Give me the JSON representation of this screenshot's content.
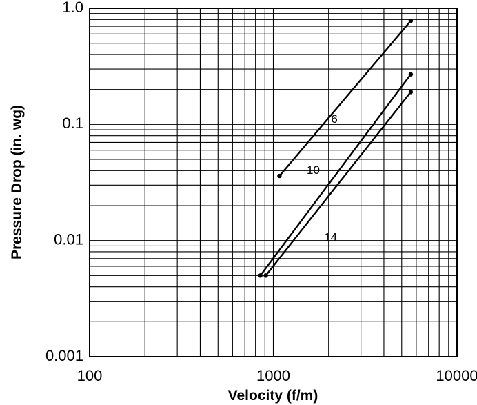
{
  "chart_data": {
    "type": "line",
    "x_scale": "log",
    "y_scale": "log",
    "xlim": [
      100,
      10000
    ],
    "ylim": [
      0.001,
      1.0
    ],
    "grid": true,
    "xlabel": "Velocity (f/m)",
    "ylabel": "Pressure Drop (in. wg)",
    "x_ticks": [
      {
        "value": 100,
        "label": "100"
      },
      {
        "value": 1000,
        "label": "1000"
      },
      {
        "value": 10000,
        "label": "10000"
      }
    ],
    "y_ticks": [
      {
        "value": 0.001,
        "label": "0.001"
      },
      {
        "value": 0.01,
        "label": "0.01"
      },
      {
        "value": 0.1,
        "label": "0.1"
      },
      {
        "value": 1.0,
        "label": "1.0"
      }
    ],
    "series": [
      {
        "name": "6",
        "x": [
          1080,
          5600
        ],
        "y": [
          0.036,
          0.78
        ],
        "label_at": {
          "x": 2150,
          "y": 0.11
        }
      },
      {
        "name": "10",
        "x": [
          850,
          5600
        ],
        "y": [
          0.005,
          0.27
        ],
        "label_at": {
          "x": 1650,
          "y": 0.04
        }
      },
      {
        "name": "14",
        "x": [
          910,
          5600
        ],
        "y": [
          0.005,
          0.19
        ],
        "label_at": {
          "x": 2050,
          "y": 0.0105
        }
      }
    ]
  }
}
